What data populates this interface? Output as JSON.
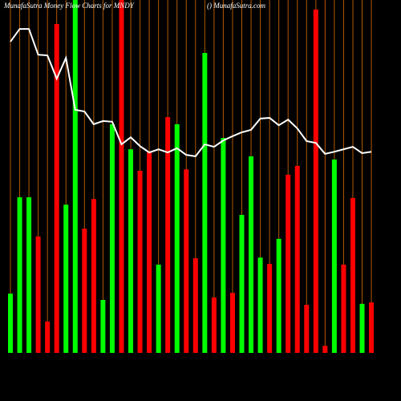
{
  "chart_data": {
    "type": "bar-line",
    "title": "MunafaSutra  Money Flow  Charts for MNDY",
    "subtitle": "() MunafaSutra.com",
    "categories": [
      null,
      null,
      null,
      null,
      null,
      null,
      null,
      null,
      null,
      null,
      null,
      null,
      null,
      null,
      null,
      null,
      null,
      null,
      null,
      null,
      null,
      null,
      null,
      null,
      null,
      null,
      null,
      null,
      null,
      null,
      null,
      null,
      null,
      null,
      null,
      null,
      null,
      null,
      null,
      null
    ],
    "ylim": [
      0,
      100
    ],
    "grid_color": "#b35900",
    "series": [
      {
        "type": "bar",
        "values": [
          16.8,
          44.1,
          44.1,
          33.0,
          8.9,
          93.2,
          42.0,
          100,
          35.2,
          43.6,
          15.0,
          64.8,
          100,
          57.7,
          51.6,
          56.8,
          25.0,
          66.8,
          64.8,
          52.0,
          26.8,
          85.0,
          15.7,
          60.9,
          17.0,
          39.1,
          55.7,
          27.0,
          25.2,
          32.3,
          50.5,
          53.0,
          13.6,
          97.3,
          2.0,
          54.8,
          25.0,
          43.9,
          13.9,
          14.3
        ],
        "colors": [
          "#00ff00",
          "#00ff00",
          "#00ff00",
          "#ff0000",
          "#ff0000",
          "#ff0000",
          "#00ff00",
          "#00ff00",
          "#ff0000",
          "#ff0000",
          "#00ff00",
          "#00ff00",
          "#ff0000",
          "#00ff00",
          "#ff0000",
          "#ff0000",
          "#00ff00",
          "#ff0000",
          "#00ff00",
          "#ff0000",
          "#ff0000",
          "#00ff00",
          "#ff0000",
          "#00ff00",
          "#ff0000",
          "#00ff00",
          "#00ff00",
          "#00ff00",
          "#ff0000",
          "#00ff00",
          "#ff0000",
          "#ff0000",
          "#ff0000",
          "#ff0000",
          "#ff0000",
          "#00ff00",
          "#ff0000",
          "#ff0000",
          "#00ff00",
          "#ff0000"
        ]
      },
      {
        "type": "line",
        "color": "#ffffff",
        "values": [
          88.2,
          91.8,
          91.8,
          84.5,
          84.3,
          77.7,
          83.6,
          68.9,
          68.4,
          64.8,
          65.7,
          65.5,
          59.1,
          61.1,
          58.6,
          56.8,
          57.7,
          56.8,
          58.0,
          56.1,
          55.7,
          59.1,
          58.4,
          60.2,
          61.4,
          62.5,
          63.2,
          66.4,
          66.6,
          64.5,
          66.1,
          63.6,
          60.0,
          59.5,
          56.4,
          57.0,
          57.7,
          58.4,
          56.6,
          57.0
        ]
      }
    ]
  }
}
